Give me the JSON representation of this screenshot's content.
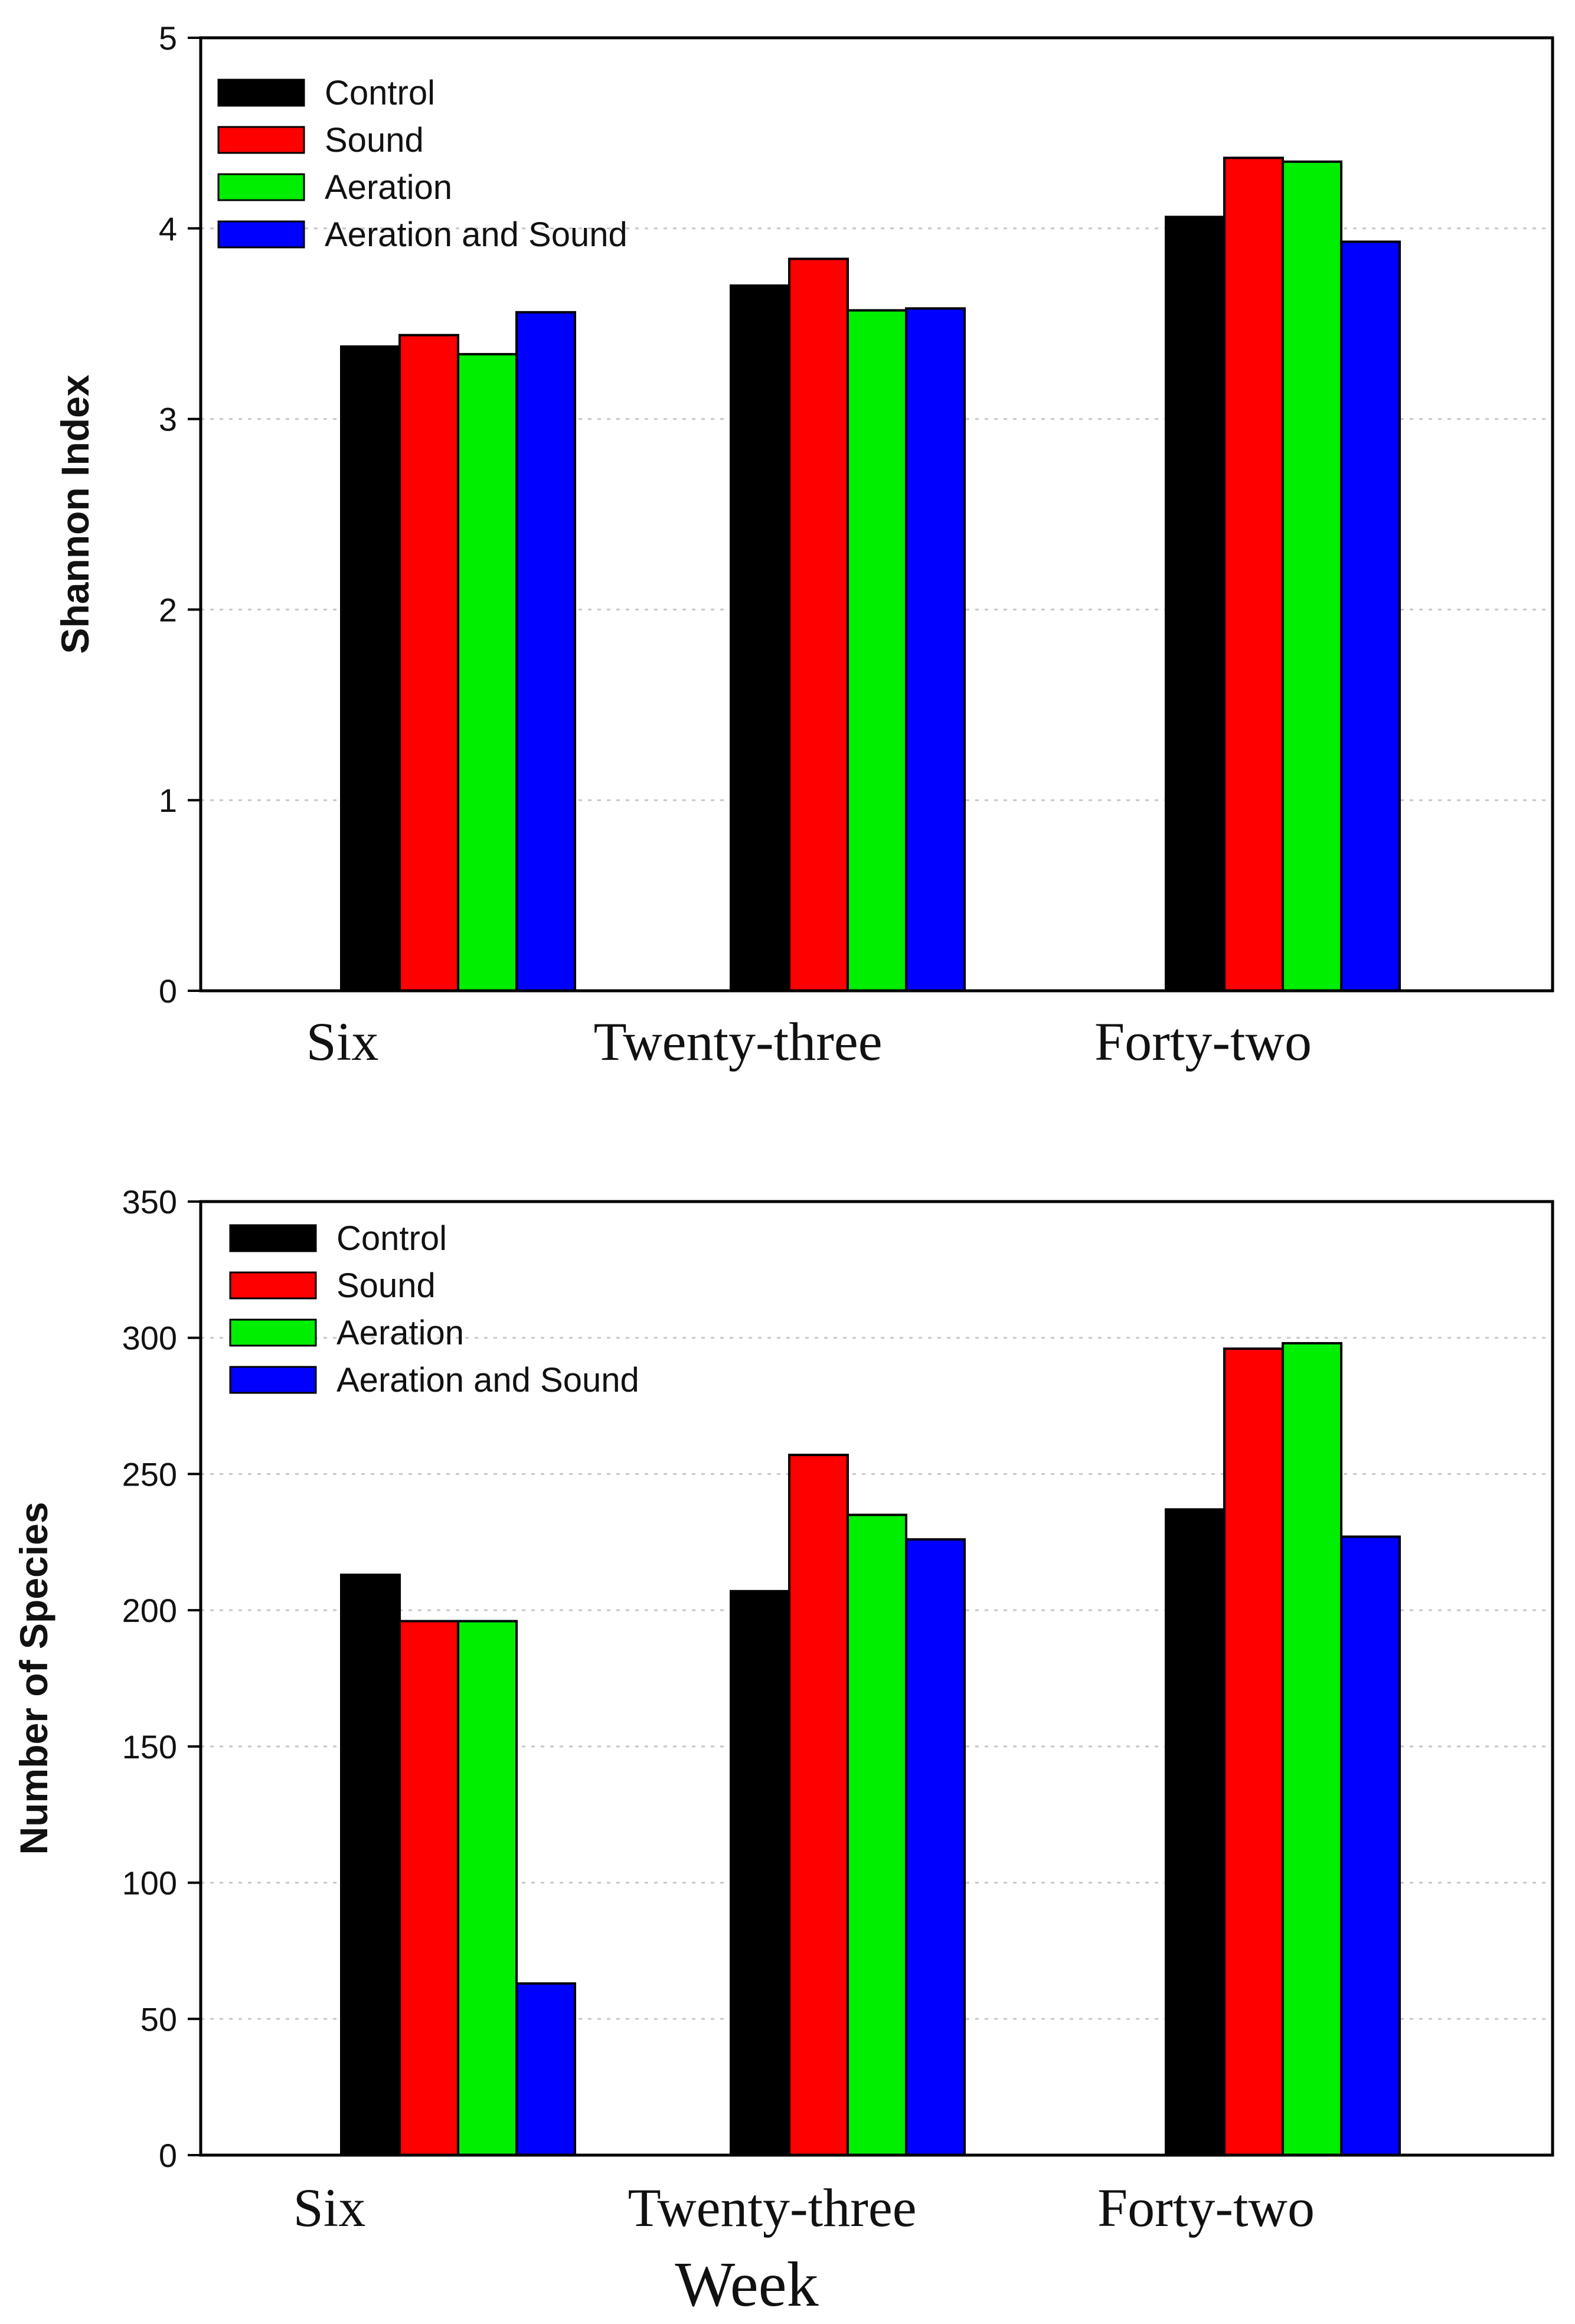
{
  "chart_data": [
    {
      "type": "bar",
      "categories": [
        "Six",
        "Twenty-three",
        "Forty-two"
      ],
      "series": [
        {
          "name": "Control",
          "color": "#000000",
          "values": [
            3.38,
            3.7,
            4.06
          ]
        },
        {
          "name": "Sound",
          "color": "#ff0000",
          "values": [
            3.44,
            3.84,
            4.37
          ]
        },
        {
          "name": "Aeration",
          "color": "#00ee00",
          "values": [
            3.34,
            3.57,
            4.35
          ]
        },
        {
          "name": "Aeration and Sound",
          "color": "#0000ff",
          "values": [
            3.56,
            3.58,
            3.93
          ]
        }
      ],
      "ylabel": "Shannon Index",
      "xlabel": "",
      "ylim": [
        0,
        5
      ],
      "yticks": [
        0,
        1,
        2,
        3,
        4,
        5
      ],
      "grid": true,
      "legend_position": "top-left"
    },
    {
      "type": "bar",
      "categories": [
        "Six",
        "Twenty-three",
        "Forty-two"
      ],
      "series": [
        {
          "name": "Control",
          "color": "#000000",
          "values": [
            213,
            207,
            237
          ]
        },
        {
          "name": "Sound",
          "color": "#ff0000",
          "values": [
            196,
            257,
            296
          ]
        },
        {
          "name": "Aeration",
          "color": "#00ee00",
          "values": [
            196,
            235,
            298
          ]
        },
        {
          "name": "Aeration and Sound",
          "color": "#0000ff",
          "values": [
            63,
            226,
            227
          ]
        }
      ],
      "ylabel": "Number of Species",
      "xlabel": "Week",
      "ylim": [
        0,
        350
      ],
      "yticks": [
        0,
        50,
        100,
        150,
        200,
        250,
        300,
        350
      ],
      "grid": true,
      "legend_position": "top-left"
    }
  ]
}
